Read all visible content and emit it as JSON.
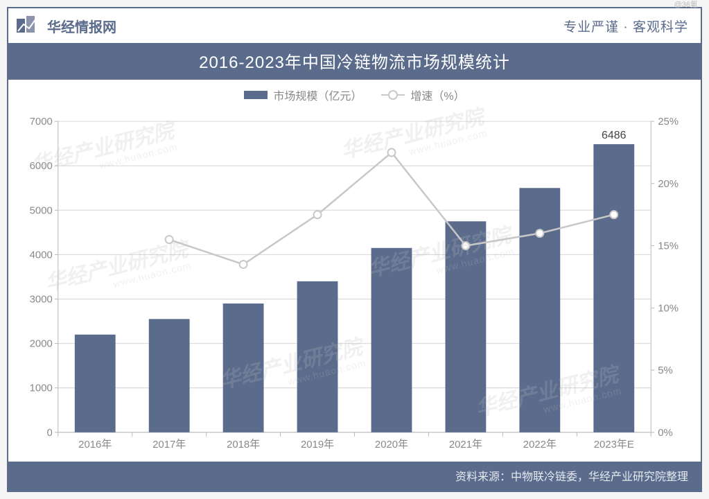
{
  "credit": "@36氪",
  "header": {
    "brand_name": "华经情报网",
    "tagline": "专业严谨 · 客观科学",
    "brand_color": "#5a6b8c"
  },
  "title": "2016-2023年中国冷链物流市场规模统计",
  "legend": {
    "bar_label": "市场规模（亿元）",
    "line_label": "增速（%）"
  },
  "chart": {
    "type": "bar+line",
    "categories": [
      "2016年",
      "2017年",
      "2018年",
      "2019年",
      "2020年",
      "2021年",
      "2022年",
      "2023年E"
    ],
    "bar_values": [
      2200,
      2550,
      2900,
      3400,
      4150,
      4750,
      5500,
      6486
    ],
    "line_values": [
      null,
      15.5,
      13.5,
      17.5,
      22.5,
      15.0,
      16.0,
      17.5
    ],
    "data_labels": {
      "7": "6486"
    },
    "left_axis": {
      "min": 0,
      "max": 7000,
      "step": 1000
    },
    "right_axis": {
      "min": 0,
      "max": 25,
      "step": 5,
      "suffix": "%"
    },
    "colors": {
      "bar": "#5a6b8c",
      "line": "#c8c8c8",
      "marker_fill": "#ffffff",
      "marker_stroke": "#c8c8c8",
      "grid": "#d6d6d6",
      "axis": "#b8b8b8",
      "tick_text": "#888888",
      "background": "#ffffff"
    },
    "bar_width_ratio": 0.55,
    "line_width": 2.5,
    "marker_radius": 5.5,
    "tick_fontsize": 15,
    "label_fontsize": 15
  },
  "footer_source": "资料来源：中物联冷链委，华经产业研究院整理",
  "watermark": {
    "text_main": "华经产业研究院",
    "text_sub": "www.huaon.com"
  }
}
